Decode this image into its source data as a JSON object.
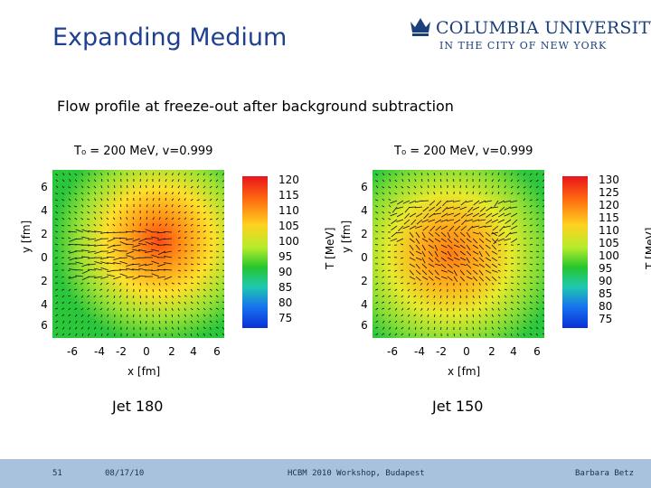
{
  "slide": {
    "title": "Expanding Medium",
    "subtitle": "Flow profile at freeze-out after background subtraction"
  },
  "logo": {
    "name": "COLUMBIA UNIVERSITY",
    "tagline": "IN THE CITY OF NEW YORK"
  },
  "panels": [
    {
      "title": "T₀ = 200 MeV, v=0.999",
      "y_label": "y [fm]",
      "x_label": "x [fm]",
      "y_ticks": [
        "6",
        "4",
        "2",
        "0",
        "2",
        "4",
        "6"
      ],
      "x_ticks": [
        "-6",
        "-4",
        "-2",
        "0",
        "2",
        "4",
        "6"
      ],
      "colorbar_ticks": [
        "120",
        "115",
        "110",
        "105",
        "100",
        "95",
        "90",
        "85",
        "80",
        "75"
      ],
      "colorbar_label": "T [MeV]",
      "caption": "Jet 180"
    },
    {
      "title": "T₀ = 200 MeV, v=0.999",
      "y_label": "y [fm]",
      "x_label": "x [fm]",
      "y_ticks": [
        "6",
        "4",
        "2",
        "0",
        "2",
        "4",
        "6"
      ],
      "x_ticks": [
        "-6",
        "-4",
        "-2",
        "0",
        "2",
        "4",
        "6"
      ],
      "colorbar_ticks": [
        "130",
        "125",
        "120",
        "115",
        "110",
        "105",
        "100",
        "95",
        "90",
        "85",
        "80",
        "75"
      ],
      "colorbar_label": "T [MeV]",
      "caption": "Jet 150"
    }
  ],
  "footer": {
    "page": "51",
    "date": "08/17/10",
    "event": "HCBM 2010 Workshop, Budapest",
    "author": "Barbara Betz"
  }
}
